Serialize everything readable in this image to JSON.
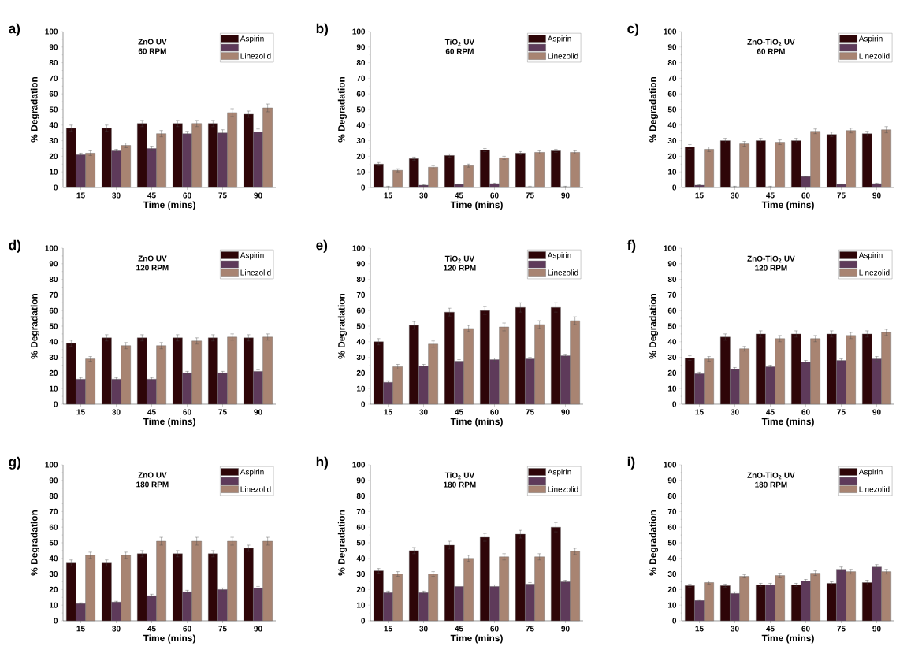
{
  "chart_data": [
    {
      "type": "bar",
      "title": "ZnO UV",
      "subtitle": "60 RPM",
      "xlabel": "Time (mins)",
      "ylabel": "% Degradation",
      "annotations": [
        "a)"
      ],
      "legend": "top right",
      "ylim": [
        0,
        100
      ],
      "yticks": [
        0,
        10,
        20,
        30,
        40,
        50,
        60,
        70,
        80,
        90,
        100
      ],
      "categories": [
        "15",
        "30",
        "45",
        "60",
        "75",
        "90"
      ],
      "series": [
        {
          "name": "Aspirin",
          "color": "#2e0508",
          "values": [
            38,
            38,
            41,
            41,
            41,
            47
          ],
          "errors": [
            2,
            2,
            2,
            2,
            2,
            2
          ]
        },
        {
          "color": "#5e3a5a",
          "values": [
            21,
            23.5,
            25,
            34.5,
            35,
            35.5
          ],
          "errors": [
            1,
            1,
            1.5,
            1.5,
            2,
            2
          ]
        },
        {
          "name": "Linezolid",
          "color": "#a88472",
          "values": [
            22,
            27,
            34.5,
            41,
            48,
            51
          ],
          "errors": [
            1.5,
            1.5,
            2,
            2,
            2.5,
            2.5
          ]
        }
      ]
    },
    {
      "type": "bar",
      "title": "TiO$_{2}$ UV",
      "subtitle": "60 RPM",
      "xlabel": "Time (mins)",
      "ylabel": "% Degradation",
      "annotations": [
        "b)"
      ],
      "legend": "top right",
      "ylim": [
        0,
        100
      ],
      "yticks": [
        0,
        10,
        20,
        30,
        40,
        50,
        60,
        70,
        80,
        90,
        100
      ],
      "categories": [
        "15",
        "30",
        "45",
        "60",
        "75",
        "90"
      ],
      "series": [
        {
          "name": "Aspirin",
          "color": "#2e0508",
          "values": [
            15,
            18.5,
            20.5,
            24,
            22,
            23.5
          ],
          "errors": [
            1,
            1,
            1,
            1,
            1,
            1
          ]
        },
        {
          "color": "#5e3a5a",
          "values": [
            0.5,
            1.5,
            2,
            2.5,
            0.5,
            0.5
          ],
          "errors": [
            0.3,
            0.3,
            0.3,
            0.3,
            0.3,
            0.3
          ]
        },
        {
          "name": "Linezolid",
          "color": "#a88472",
          "values": [
            11,
            13,
            14,
            19,
            22.5,
            22.5
          ],
          "errors": [
            1,
            1,
            1,
            1,
            1,
            1
          ]
        }
      ]
    },
    {
      "type": "bar",
      "title": "ZnO-TiO$_{2}$ UV",
      "subtitle": "60 RPM",
      "xlabel": "Time (mins)",
      "ylabel": "% Degradation",
      "annotations": [
        "c)"
      ],
      "legend": "top right",
      "ylim": [
        0,
        100
      ],
      "yticks": [
        0,
        10,
        20,
        30,
        40,
        50,
        60,
        70,
        80,
        90,
        100
      ],
      "categories": [
        "15",
        "30",
        "45",
        "60",
        "75",
        "90"
      ],
      "series": [
        {
          "name": "Aspirin",
          "color": "#2e0508",
          "values": [
            26,
            30,
            30,
            30,
            34,
            34.5
          ],
          "errors": [
            1.5,
            1.5,
            1.5,
            1.5,
            1.5,
            1.5
          ]
        },
        {
          "color": "#5e3a5a",
          "values": [
            1.5,
            0.5,
            0.5,
            7,
            2,
            2.5
          ],
          "errors": [
            0.3,
            0.3,
            0.3,
            0.3,
            0.3,
            0.3
          ]
        },
        {
          "name": "Linezolid",
          "color": "#a88472",
          "values": [
            24.5,
            28,
            29,
            36,
            36.5,
            37
          ],
          "errors": [
            1.5,
            1.5,
            1.5,
            1.5,
            1.5,
            2
          ]
        }
      ]
    },
    {
      "type": "bar",
      "title": "ZnO UV",
      "subtitle": "120 RPM",
      "xlabel": "Time (mins)",
      "ylabel": "% Degradation",
      "annotations": [
        "d)"
      ],
      "legend": "top right",
      "ylim": [
        0,
        100
      ],
      "yticks": [
        0,
        10,
        20,
        30,
        40,
        50,
        60,
        70,
        80,
        90,
        100
      ],
      "categories": [
        "15",
        "30",
        "45",
        "60",
        "75",
        "90"
      ],
      "series": [
        {
          "name": "Aspirin",
          "color": "#2e0508",
          "values": [
            39,
            42.5,
            42.5,
            42.5,
            42.5,
            42.5
          ],
          "errors": [
            2,
            2,
            2,
            2,
            2,
            2
          ]
        },
        {
          "color": "#5e3a5a",
          "values": [
            16,
            16,
            16,
            20,
            20,
            21
          ],
          "errors": [
            1,
            1,
            1,
            1,
            1,
            1
          ]
        },
        {
          "name": "Linezolid",
          "color": "#a88472",
          "values": [
            29,
            37.5,
            37.5,
            40.5,
            43,
            43
          ],
          "errors": [
            1.5,
            2,
            2,
            2,
            2,
            2
          ]
        }
      ]
    },
    {
      "type": "bar",
      "title": "TiO$_{2}$ UV",
      "subtitle": "120 RPM",
      "xlabel": "Time (mins)",
      "ylabel": "% Degradation",
      "annotations": [
        "e)"
      ],
      "legend": "top right",
      "ylim": [
        0,
        100
      ],
      "yticks": [
        0,
        10,
        20,
        30,
        40,
        50,
        60,
        70,
        80,
        90,
        100
      ],
      "categories": [
        "15",
        "30",
        "45",
        "60",
        "75",
        "90"
      ],
      "series": [
        {
          "name": "Aspirin",
          "color": "#2e0508",
          "values": [
            40,
            50.5,
            59,
            60,
            62,
            62
          ],
          "errors": [
            2,
            2.5,
            2.5,
            2.5,
            3,
            3
          ]
        },
        {
          "color": "#5e3a5a",
          "values": [
            14,
            24.5,
            27.5,
            28.5,
            29,
            31
          ],
          "errors": [
            1,
            1,
            1,
            1,
            1,
            1
          ]
        },
        {
          "name": "Linezolid",
          "color": "#a88472",
          "values": [
            24,
            38.5,
            48.5,
            49.5,
            51,
            53.5
          ],
          "errors": [
            1.5,
            2,
            2,
            2.5,
            2.5,
            2.5
          ]
        }
      ]
    },
    {
      "type": "bar",
      "title": "ZnO-TiO$_{2}$ UV",
      "subtitle": "120 RPM",
      "xlabel": "Time (mins)",
      "ylabel": "% Degradation",
      "annotations": [
        "f)"
      ],
      "legend": "top right",
      "ylim": [
        0,
        100
      ],
      "yticks": [
        0,
        10,
        20,
        30,
        40,
        50,
        60,
        70,
        80,
        90,
        100
      ],
      "categories": [
        "15",
        "30",
        "45",
        "60",
        "75",
        "90"
      ],
      "series": [
        {
          "name": "Aspirin",
          "color": "#2e0508",
          "values": [
            29.5,
            43,
            45,
            45,
            45,
            45
          ],
          "errors": [
            1.5,
            2,
            2,
            2,
            2,
            2
          ]
        },
        {
          "color": "#5e3a5a",
          "values": [
            19.5,
            22.5,
            24,
            27,
            28,
            29
          ],
          "errors": [
            1,
            1,
            1,
            1,
            1,
            1.5
          ]
        },
        {
          "name": "Linezolid",
          "color": "#a88472",
          "values": [
            29,
            35.5,
            42,
            42,
            44,
            46
          ],
          "errors": [
            1.5,
            1.5,
            2,
            2,
            2,
            2
          ]
        }
      ]
    },
    {
      "type": "bar",
      "title": "ZnO UV",
      "subtitle": "180 RPM",
      "xlabel": "Time (mins)",
      "ylabel": "% Degradation",
      "annotations": [
        "g)"
      ],
      "legend": "top right",
      "ylim": [
        0,
        100
      ],
      "yticks": [
        0,
        10,
        20,
        30,
        40,
        50,
        60,
        70,
        80,
        90,
        100
      ],
      "categories": [
        "15",
        "30",
        "45",
        "60",
        "75",
        "90"
      ],
      "series": [
        {
          "name": "Aspirin",
          "color": "#2e0508",
          "values": [
            37,
            37,
            43,
            43,
            43,
            46.5
          ],
          "errors": [
            2,
            2,
            2,
            2,
            2,
            2
          ]
        },
        {
          "color": "#5e3a5a",
          "values": [
            11,
            12,
            16,
            18.5,
            20,
            21
          ],
          "errors": [
            0.5,
            0.5,
            1,
            1,
            1,
            1
          ]
        },
        {
          "name": "Linezolid",
          "color": "#a88472",
          "values": [
            42,
            42,
            51,
            51,
            51,
            51
          ],
          "errors": [
            2,
            2,
            2.5,
            2.5,
            2.5,
            2.5
          ]
        }
      ]
    },
    {
      "type": "bar",
      "title": "TiO$_{2}$ UV",
      "subtitle": "180 RPM",
      "xlabel": "Time (mins)",
      "ylabel": "% Degradation",
      "annotations": [
        "h)"
      ],
      "legend": "top right",
      "ylim": [
        0,
        100
      ],
      "yticks": [
        0,
        10,
        20,
        30,
        40,
        50,
        60,
        70,
        80,
        90,
        100
      ],
      "categories": [
        "15",
        "30",
        "45",
        "60",
        "75",
        "90"
      ],
      "series": [
        {
          "name": "Aspirin",
          "color": "#2e0508",
          "values": [
            32,
            45,
            48.5,
            53.5,
            55.5,
            60
          ],
          "errors": [
            1.5,
            2,
            2.5,
            2.5,
            2.5,
            3
          ]
        },
        {
          "color": "#5e3a5a",
          "values": [
            18,
            18,
            22,
            22,
            23.5,
            25
          ],
          "errors": [
            1,
            1,
            1,
            1,
            1,
            1
          ]
        },
        {
          "name": "Linezolid",
          "color": "#a88472",
          "values": [
            30,
            30,
            40,
            41,
            41,
            44.5
          ],
          "errors": [
            1.5,
            1.5,
            2,
            2,
            2,
            2
          ]
        }
      ]
    },
    {
      "type": "bar",
      "title": "ZnO-TiO$_{2}$ UV",
      "subtitle": "180 RPM",
      "xlabel": "Time (mins)",
      "ylabel": "% Degradation",
      "annotations": [
        "i)"
      ],
      "legend": "top right",
      "ylim": [
        0,
        100
      ],
      "yticks": [
        0,
        10,
        20,
        30,
        40,
        50,
        60,
        70,
        80,
        90,
        100
      ],
      "categories": [
        "15",
        "30",
        "45",
        "60",
        "75",
        "90"
      ],
      "series": [
        {
          "name": "Aspirin",
          "color": "#2e0508",
          "values": [
            22.5,
            22.5,
            23,
            23,
            24,
            24.5
          ],
          "errors": [
            1,
            1,
            1,
            1,
            1,
            1.5
          ]
        },
        {
          "color": "#5e3a5a",
          "values": [
            13,
            17.5,
            23,
            25.5,
            33,
            34.5
          ],
          "errors": [
            0.5,
            1,
            1,
            1,
            1.5,
            1.5
          ]
        },
        {
          "name": "Linezolid",
          "color": "#a88472",
          "values": [
            24.5,
            28.5,
            29,
            30.5,
            31.5,
            31.5
          ],
          "errors": [
            1,
            1,
            1.5,
            1.5,
            1.5,
            1.5
          ]
        }
      ]
    }
  ]
}
